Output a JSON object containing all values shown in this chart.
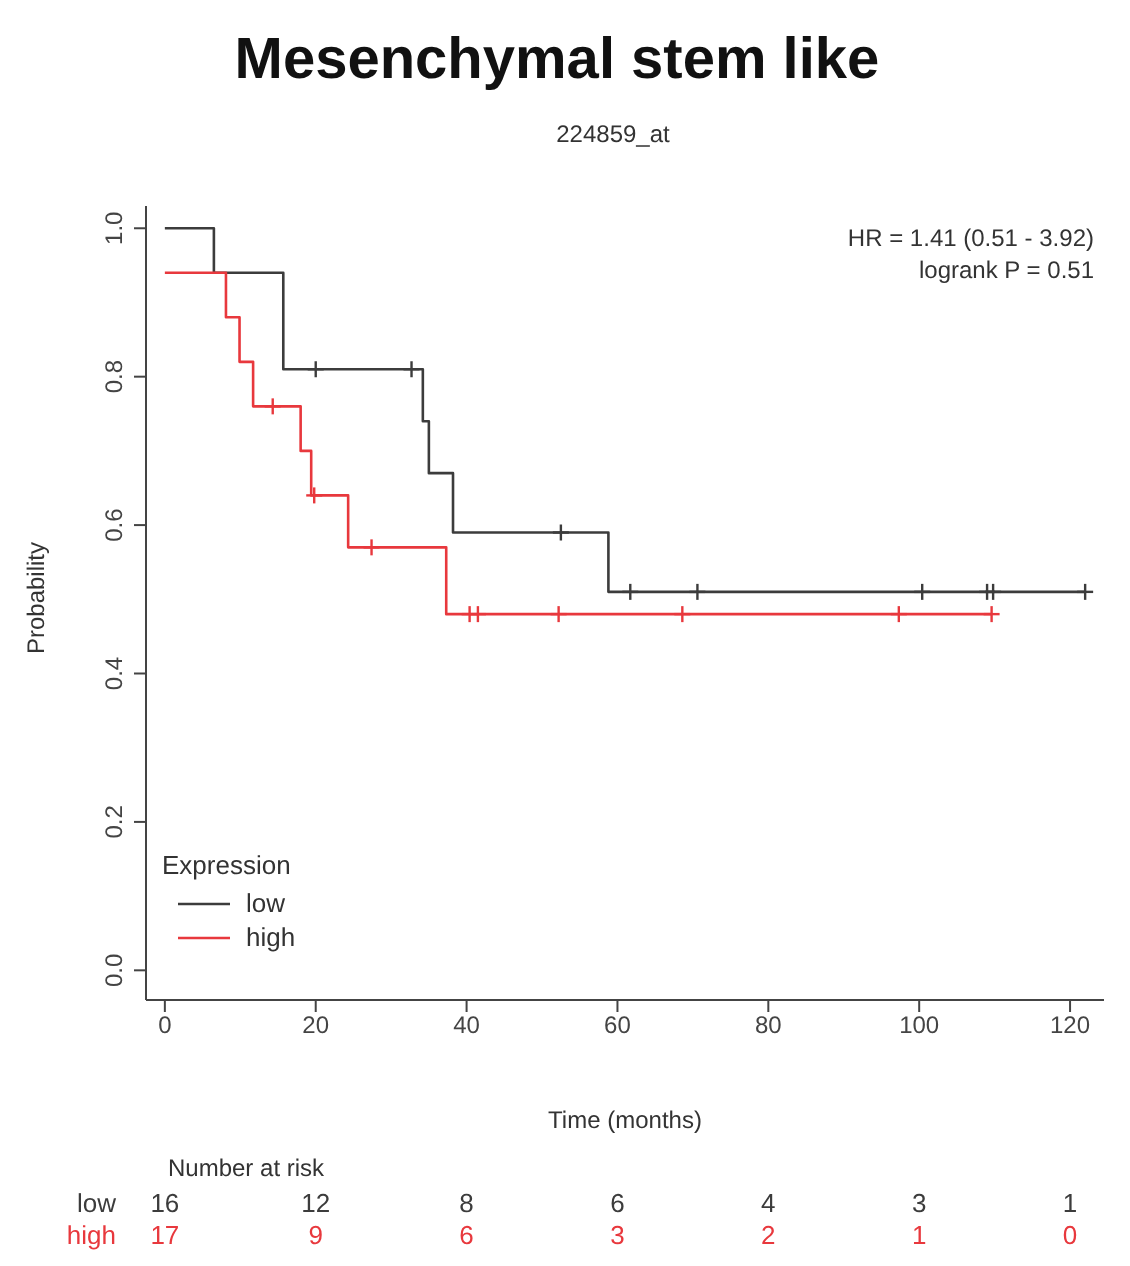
{
  "chart_data": {
    "type": "step",
    "title": "Mesenchymal stem like",
    "subtitle": "224859_at",
    "xlabel": "Time (months)",
    "ylabel": "Probability",
    "legend_title": "Expression",
    "legend": "bottom left",
    "xlim": [
      -2.5,
      124.5
    ],
    "xticks": [
      0,
      20,
      40,
      60,
      80,
      100,
      120
    ],
    "ylim": [
      -0.04,
      1.03
    ],
    "yticks": [
      {
        "value": 0,
        "label": "0.0"
      },
      {
        "value": 0.2,
        "label": "0.2"
      },
      {
        "value": 0.4,
        "label": "0.4"
      },
      {
        "value": 0.6,
        "label": "0.6"
      },
      {
        "value": 0.8,
        "label": "0.8"
      },
      {
        "value": 1,
        "label": "1.0"
      }
    ],
    "grid": false,
    "series": [
      {
        "name": "low",
        "color": "#3c3c3c",
        "x": [
          0,
          6.5,
          15.7,
          34.2,
          35,
          38.2,
          58.8,
          122
        ],
        "values": [
          1,
          0.94,
          0.81,
          0.74,
          0.67,
          0.59,
          0.51,
          0.51
        ]
      },
      {
        "name": "high",
        "color": "#e8383d",
        "x": [
          0,
          8.1,
          9.9,
          11.7,
          18,
          19.4,
          24.3,
          37.3,
          109.6
        ],
        "values": [
          0.94,
          0.88,
          0.82,
          0.76,
          0.7,
          0.64,
          0.57,
          0.48,
          0.48
        ]
      },
      {
        "type": "scatter",
        "marker": "cross",
        "color": "#3c3c3c",
        "x": [
          20,
          32.7,
          52.5,
          61.7,
          70.6,
          100.4,
          109,
          109.8,
          122
        ],
        "values": [
          0.81,
          0.81,
          0.59,
          0.51,
          0.51,
          0.51,
          0.51,
          0.51,
          0.51
        ]
      },
      {
        "type": "scatter",
        "marker": "cross",
        "color": "#e8383d",
        "x": [
          14.3,
          19.8,
          27.4,
          40.4,
          41.5,
          52.2,
          68.6,
          97.3,
          109.6
        ],
        "values": [
          0.76,
          0.64,
          0.57,
          0.48,
          0.48,
          0.48,
          0.48,
          0.48,
          0.48
        ]
      }
    ],
    "annotations": [
      "HR = 1.41 (0.51 - 3.92)",
      "logrank P = 0.51",
      "Number at risk",
      "low 16 12 8 6 4 3 1",
      "high 17 9 6 3 2 1 0"
    ]
  }
}
